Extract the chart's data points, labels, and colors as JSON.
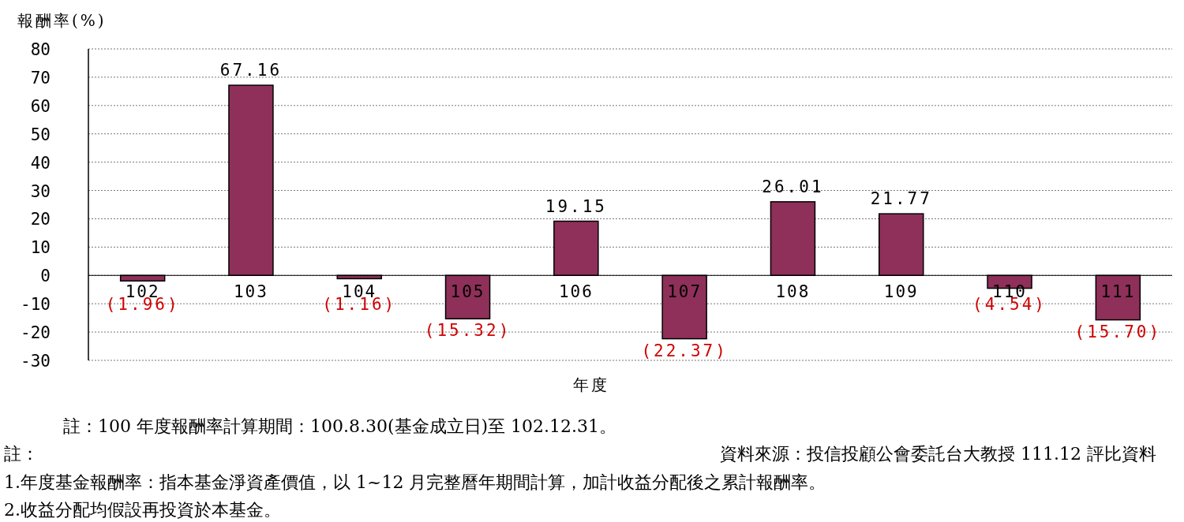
{
  "chart_data": {
    "type": "bar",
    "ylabel": "報酬率(%)",
    "xlabel": "年度",
    "categories": [
      "102",
      "103",
      "104",
      "105",
      "106",
      "107",
      "108",
      "109",
      "110",
      "111"
    ],
    "values": [
      -1.96,
      67.16,
      -1.16,
      -15.32,
      19.15,
      -22.37,
      26.01,
      21.77,
      -4.54,
      -15.7
    ],
    "value_labels": [
      "(1.96)",
      "67.16",
      "(1.16)",
      "(15.32)",
      "19.15",
      "(22.37)",
      "26.01",
      "21.77",
      "(4.54)",
      "(15.70)"
    ],
    "color": "#8e3059",
    "ylim": [
      -30,
      80
    ],
    "yticks": [
      -30,
      -20,
      -10,
      0,
      10,
      20,
      30,
      40,
      50,
      60,
      70,
      80
    ],
    "grid": "y",
    "annotations": [
      "註：100 年度報酬率計算期間：100.8.30(基金成立日)至 102.12.31。",
      "註：",
      "資料來源：投信投顧公會委託台大教授 111.12 評比資料",
      "1.年度基金報酬率：指本基金淨資產價值，以 1~12 月完整曆年期間計算，加計收益分配後之累計報酬率。",
      "2.收益分配均假設再投資於本基金。"
    ]
  }
}
